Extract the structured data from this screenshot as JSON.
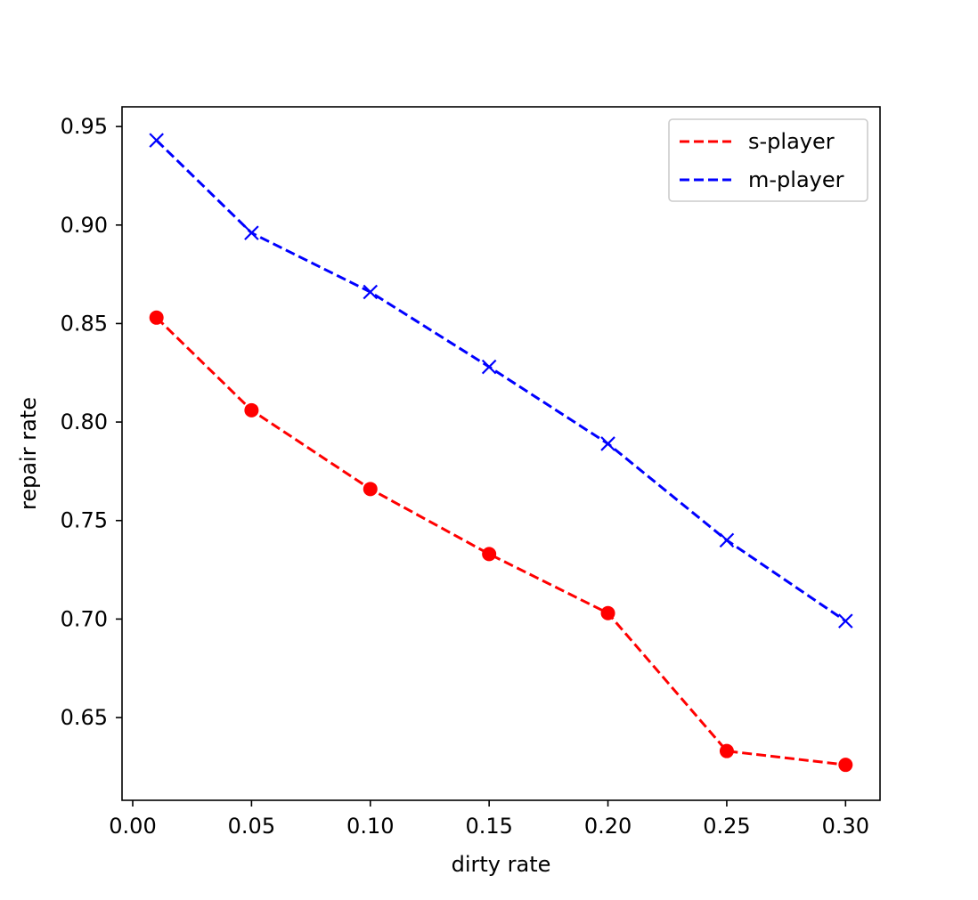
{
  "chart_data": {
    "type": "line",
    "title": "",
    "xlabel": "dirty rate",
    "ylabel": "repair rate",
    "x": [
      0.01,
      0.05,
      0.1,
      0.15,
      0.2,
      0.25,
      0.3
    ],
    "xlim": [
      -0.0045,
      0.3145
    ],
    "ylim": [
      0.608,
      0.96
    ],
    "xticks": [
      "0.00",
      "0.05",
      "0.10",
      "0.15",
      "0.20",
      "0.25",
      "0.30"
    ],
    "xtick_values": [
      0.0,
      0.05,
      0.1,
      0.15,
      0.2,
      0.25,
      0.3
    ],
    "yticks": [
      "0.65",
      "0.70",
      "0.75",
      "0.80",
      "0.85",
      "0.90",
      "0.95"
    ],
    "ytick_values": [
      0.65,
      0.7,
      0.75,
      0.8,
      0.85,
      0.9,
      0.95
    ],
    "grid": false,
    "legend_position": "upper-right",
    "series": [
      {
        "name": "s-player",
        "color": "#ff0000",
        "line_style": "dashed",
        "marker": "circle",
        "values": [
          0.853,
          0.806,
          0.766,
          0.733,
          0.703,
          0.633,
          0.626
        ]
      },
      {
        "name": "m-player",
        "color": "#0000ff",
        "line_style": "dashed",
        "marker": "x",
        "values": [
          0.943,
          0.896,
          0.866,
          0.828,
          0.789,
          0.74,
          0.699
        ]
      }
    ]
  }
}
